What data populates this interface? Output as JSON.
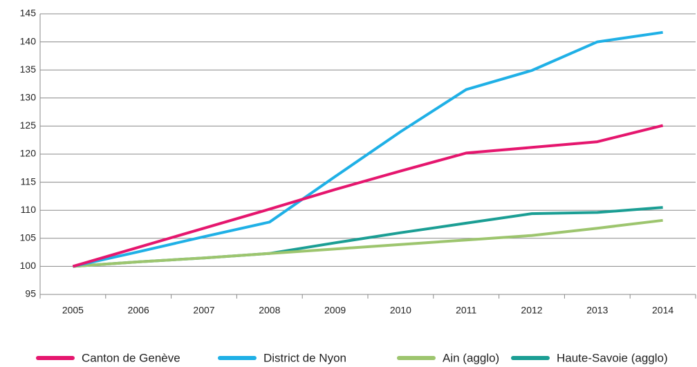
{
  "chart_data": {
    "type": "line",
    "categories": [
      "2005",
      "2006",
      "2007",
      "2008",
      "2009",
      "2010",
      "2011",
      "2012",
      "2013",
      "2014"
    ],
    "series": [
      {
        "name": "Canton de Genève",
        "color": "#e5166e",
        "values": [
          100,
          103.4,
          106.8,
          110.2,
          113.7,
          117,
          120.2,
          121.2,
          122.2,
          125.1
        ]
      },
      {
        "name": "District de Nyon",
        "color": "#1fb0e6",
        "values": [
          100,
          102.6,
          105.3,
          107.9,
          116,
          124,
          131.5,
          134.9,
          140,
          141.7
        ]
      },
      {
        "name": "Ain (agglo)",
        "color": "#9dc56e",
        "values": [
          100,
          100.8,
          101.5,
          102.3,
          103.1,
          103.9,
          104.7,
          105.5,
          106.8,
          108.2
        ]
      },
      {
        "name": "Haute-Savoie (agglo)",
        "color": "#1b9e94",
        "values": [
          100,
          100.8,
          101.5,
          102.3,
          104.2,
          106,
          107.7,
          109.4,
          109.6,
          110.5
        ]
      }
    ],
    "ylim": [
      95,
      145
    ],
    "yticks": [
      95,
      100,
      105,
      110,
      115,
      120,
      125,
      130,
      135,
      140,
      145
    ],
    "grid": true,
    "legend": "bottom"
  }
}
